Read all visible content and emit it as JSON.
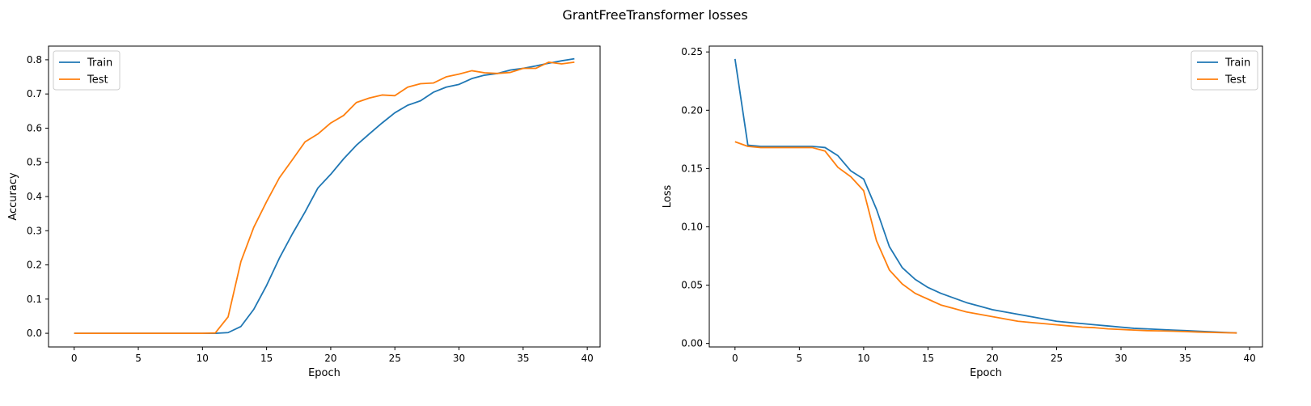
{
  "figure": {
    "suptitle": "GrantFreeTransformer losses"
  },
  "colors": {
    "train": "#1f77b4",
    "test": "#ff7f0e",
    "axis": "#000000"
  },
  "chart_data": [
    {
      "type": "line",
      "title": "",
      "xlabel": "Epoch",
      "ylabel": "Accuracy",
      "xlim": [
        -2,
        41
      ],
      "ylim": [
        -0.04,
        0.84
      ],
      "xticks": [
        0,
        5,
        10,
        15,
        20,
        25,
        30,
        35,
        40
      ],
      "yticks": [
        0.0,
        0.1,
        0.2,
        0.3,
        0.4,
        0.5,
        0.6,
        0.7,
        0.8
      ],
      "ytick_decimals": 1,
      "grid": false,
      "legend": "upper left",
      "x": [
        0,
        1,
        2,
        3,
        4,
        5,
        6,
        7,
        8,
        9,
        10,
        11,
        12,
        13,
        14,
        15,
        16,
        17,
        18,
        19,
        20,
        21,
        22,
        23,
        24,
        25,
        26,
        27,
        28,
        29,
        30,
        31,
        32,
        33,
        34,
        35,
        36,
        37,
        38,
        39
      ],
      "series": [
        {
          "name": "Train",
          "color": "#1f77b4",
          "values": [
            0,
            0,
            0,
            0,
            0,
            0,
            0,
            0,
            0,
            0,
            0,
            0,
            0.002,
            0.02,
            0.07,
            0.14,
            0.22,
            0.29,
            0.355,
            0.425,
            0.465,
            0.51,
            0.55,
            0.583,
            0.615,
            0.645,
            0.667,
            0.68,
            0.705,
            0.72,
            0.728,
            0.745,
            0.755,
            0.76,
            0.77,
            0.775,
            0.782,
            0.79,
            0.797,
            0.803
          ]
        },
        {
          "name": "Test",
          "color": "#ff7f0e",
          "values": [
            0,
            0,
            0,
            0,
            0,
            0,
            0,
            0,
            0,
            0,
            0,
            0.001,
            0.048,
            0.21,
            0.31,
            0.385,
            0.455,
            0.507,
            0.56,
            0.583,
            0.615,
            0.637,
            0.675,
            0.688,
            0.697,
            0.695,
            0.72,
            0.73,
            0.732,
            0.75,
            0.758,
            0.768,
            0.762,
            0.76,
            0.763,
            0.775,
            0.775,
            0.793,
            0.788,
            0.793
          ]
        }
      ]
    },
    {
      "type": "line",
      "title": "",
      "xlabel": "Epoch",
      "ylabel": "Loss",
      "xlim": [
        -2,
        41
      ],
      "ylim": [
        -0.003,
        0.255
      ],
      "xticks": [
        0,
        5,
        10,
        15,
        20,
        25,
        30,
        35,
        40
      ],
      "yticks": [
        0.0,
        0.05,
        0.1,
        0.15,
        0.2,
        0.25
      ],
      "ytick_decimals": 2,
      "grid": false,
      "legend": "upper right",
      "x": [
        0,
        1,
        2,
        3,
        4,
        5,
        6,
        7,
        8,
        9,
        10,
        11,
        12,
        13,
        14,
        15,
        16,
        17,
        18,
        19,
        20,
        21,
        22,
        23,
        24,
        25,
        26,
        27,
        28,
        29,
        30,
        31,
        32,
        33,
        34,
        35,
        36,
        37,
        38,
        39
      ],
      "series": [
        {
          "name": "Train",
          "color": "#1f77b4",
          "values": [
            0.244,
            0.17,
            0.169,
            0.169,
            0.169,
            0.169,
            0.169,
            0.168,
            0.161,
            0.148,
            0.141,
            0.115,
            0.083,
            0.065,
            0.055,
            0.048,
            0.043,
            0.039,
            0.035,
            0.032,
            0.029,
            0.027,
            0.025,
            0.023,
            0.021,
            0.019,
            0.018,
            0.017,
            0.016,
            0.015,
            0.014,
            0.013,
            0.0125,
            0.012,
            0.0115,
            0.011,
            0.0105,
            0.01,
            0.0095,
            0.009
          ]
        },
        {
          "name": "Test",
          "color": "#ff7f0e",
          "values": [
            0.173,
            0.169,
            0.168,
            0.168,
            0.168,
            0.168,
            0.168,
            0.165,
            0.151,
            0.143,
            0.131,
            0.088,
            0.063,
            0.051,
            0.043,
            0.038,
            0.033,
            0.03,
            0.027,
            0.025,
            0.023,
            0.021,
            0.019,
            0.018,
            0.017,
            0.016,
            0.015,
            0.014,
            0.0135,
            0.0125,
            0.012,
            0.0115,
            0.011,
            0.0108,
            0.0105,
            0.0102,
            0.0098,
            0.0095,
            0.0092,
            0.009
          ]
        }
      ]
    }
  ]
}
